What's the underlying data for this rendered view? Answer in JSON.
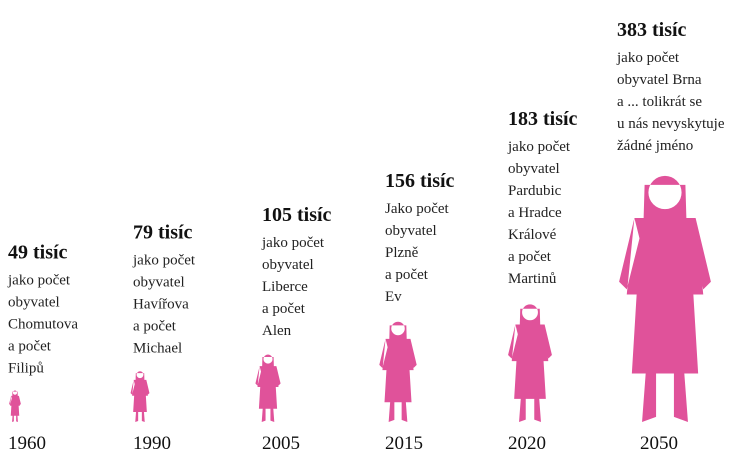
{
  "chart_data": {
    "type": "pictogram",
    "categories": [
      "1960",
      "1990",
      "2005",
      "2015",
      "2020",
      "2050"
    ],
    "values": [
      49,
      79,
      105,
      156,
      183,
      383
    ],
    "value_labels": [
      "49 tisíc",
      "79 tisíc",
      "105 tisíc",
      "156 tisíc",
      "183 tisíc",
      "383 tisíc"
    ],
    "annotations": [
      [
        "jako počet",
        "obyvatel",
        "Chomutova",
        "a počet",
        "Filipů"
      ],
      [
        "jako počet",
        "obyvatel",
        "Havířova",
        "a počet",
        "Michael"
      ],
      [
        "jako počet",
        "obyvatel",
        "Liberce",
        "a počet",
        "Alen"
      ],
      [
        "Jako počet",
        "obyvatel",
        "Plzně",
        "a počet",
        "Ev"
      ],
      [
        "jako počet",
        "obyvatel",
        "Pardubic",
        "a Hradce",
        "Králové",
        "a počet",
        "Martinů"
      ],
      [
        "jako počet",
        "obyvatel Brna",
        "a ... tolikrát se",
        "u nás nevyskytuje",
        "žádné jméno"
      ]
    ],
    "color": "#e0529a"
  }
}
